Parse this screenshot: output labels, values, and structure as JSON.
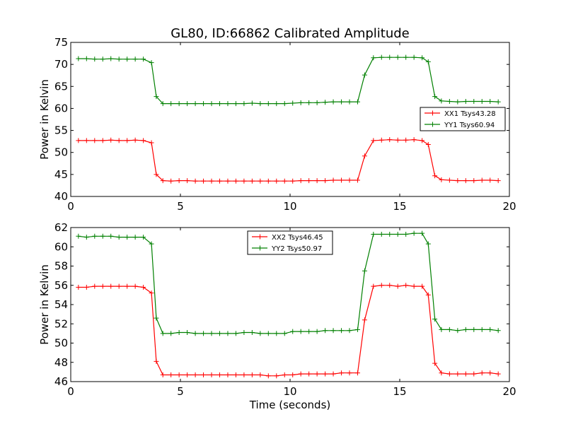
{
  "title": "GL80, ID:66862 Calibrated Amplitude",
  "chart_data": [
    {
      "type": "line",
      "ylabel": "Power in Kelvin",
      "xlabel": "",
      "xlim": [
        0,
        20
      ],
      "ylim": [
        40,
        75
      ],
      "xticks": [
        0,
        5,
        10,
        15,
        20
      ],
      "yticks": [
        40,
        45,
        50,
        55,
        60,
        65,
        70,
        75
      ],
      "legend_position": "center-right",
      "grid": false,
      "series": [
        {
          "name": "XX1 Tsys43.28",
          "color": "#ff0000",
          "x": [
            0.35,
            0.72,
            1.09,
            1.46,
            1.83,
            2.2,
            2.57,
            2.94,
            3.31,
            3.68,
            3.9,
            4.2,
            4.57,
            4.94,
            5.31,
            5.68,
            6.05,
            6.42,
            6.79,
            7.16,
            7.53,
            7.9,
            8.27,
            8.64,
            9.01,
            9.38,
            9.75,
            10.12,
            10.49,
            10.86,
            11.23,
            11.6,
            11.97,
            12.34,
            12.71,
            13.08,
            13.4,
            13.8,
            14.17,
            14.54,
            14.91,
            15.28,
            15.65,
            16.02,
            16.3,
            16.6,
            16.9,
            17.27,
            17.64,
            18.01,
            18.38,
            18.75,
            19.12,
            19.49
          ],
          "y": [
            52.7,
            52.7,
            52.7,
            52.7,
            52.8,
            52.7,
            52.7,
            52.8,
            52.7,
            52.2,
            45.0,
            43.6,
            43.5,
            43.6,
            43.6,
            43.5,
            43.5,
            43.5,
            43.5,
            43.5,
            43.5,
            43.5,
            43.5,
            43.5,
            43.5,
            43.5,
            43.5,
            43.5,
            43.6,
            43.6,
            43.6,
            43.6,
            43.7,
            43.7,
            43.7,
            43.7,
            49.2,
            52.7,
            52.8,
            52.9,
            52.8,
            52.8,
            52.9,
            52.7,
            51.8,
            44.7,
            43.8,
            43.7,
            43.6,
            43.6,
            43.6,
            43.7,
            43.7,
            43.6
          ]
        },
        {
          "name": "YY1 Tsys60.94",
          "color": "#008000",
          "x": [
            0.35,
            0.72,
            1.09,
            1.46,
            1.83,
            2.2,
            2.57,
            2.94,
            3.31,
            3.68,
            3.9,
            4.2,
            4.57,
            4.94,
            5.31,
            5.68,
            6.05,
            6.42,
            6.79,
            7.16,
            7.53,
            7.9,
            8.27,
            8.64,
            9.01,
            9.38,
            9.75,
            10.12,
            10.49,
            10.86,
            11.23,
            11.6,
            11.97,
            12.34,
            12.71,
            13.08,
            13.4,
            13.8,
            14.17,
            14.54,
            14.91,
            15.28,
            15.65,
            16.02,
            16.3,
            16.6,
            16.9,
            17.27,
            17.64,
            18.01,
            18.38,
            18.75,
            19.12,
            19.49
          ],
          "y": [
            71.3,
            71.3,
            71.2,
            71.2,
            71.3,
            71.2,
            71.2,
            71.2,
            71.2,
            70.4,
            62.7,
            61.1,
            61.1,
            61.1,
            61.1,
            61.1,
            61.1,
            61.1,
            61.1,
            61.1,
            61.1,
            61.1,
            61.2,
            61.1,
            61.1,
            61.1,
            61.1,
            61.2,
            61.3,
            61.3,
            61.3,
            61.4,
            61.5,
            61.5,
            61.5,
            61.5,
            67.6,
            71.5,
            71.6,
            71.6,
            71.6,
            71.6,
            71.6,
            71.5,
            70.6,
            62.7,
            61.7,
            61.6,
            61.5,
            61.6,
            61.6,
            61.6,
            61.6,
            61.5
          ]
        }
      ]
    },
    {
      "type": "line",
      "ylabel": "Power in Kelvin",
      "xlabel": "Time (seconds)",
      "xlim": [
        0,
        20
      ],
      "ylim": [
        46,
        62
      ],
      "xticks": [
        0,
        5,
        10,
        15,
        20
      ],
      "yticks": [
        46,
        48,
        50,
        52,
        54,
        56,
        58,
        60,
        62
      ],
      "legend_position": "upper-center",
      "grid": false,
      "series": [
        {
          "name": "XX2 Tsys46.45",
          "color": "#ff0000",
          "x": [
            0.35,
            0.72,
            1.09,
            1.46,
            1.83,
            2.2,
            2.57,
            2.94,
            3.31,
            3.68,
            3.9,
            4.2,
            4.57,
            4.94,
            5.31,
            5.68,
            6.05,
            6.42,
            6.79,
            7.16,
            7.53,
            7.9,
            8.27,
            8.64,
            9.01,
            9.38,
            9.75,
            10.12,
            10.49,
            10.86,
            11.23,
            11.6,
            11.97,
            12.34,
            12.71,
            13.08,
            13.4,
            13.8,
            14.17,
            14.54,
            14.91,
            15.28,
            15.65,
            16.02,
            16.3,
            16.6,
            16.9,
            17.27,
            17.64,
            18.01,
            18.38,
            18.75,
            19.12,
            19.49
          ],
          "y": [
            55.8,
            55.8,
            55.9,
            55.9,
            55.9,
            55.9,
            55.9,
            55.9,
            55.8,
            55.2,
            48.1,
            46.7,
            46.7,
            46.7,
            46.7,
            46.7,
            46.7,
            46.7,
            46.7,
            46.7,
            46.7,
            46.7,
            46.7,
            46.7,
            46.6,
            46.6,
            46.7,
            46.7,
            46.8,
            46.8,
            46.8,
            46.8,
            46.8,
            46.9,
            46.9,
            46.9,
            52.4,
            55.9,
            56.0,
            56.0,
            55.9,
            56.0,
            55.9,
            55.9,
            55.0,
            47.9,
            46.9,
            46.8,
            46.8,
            46.8,
            46.8,
            46.9,
            46.9,
            46.8
          ]
        },
        {
          "name": "YY2 Tsys50.97",
          "color": "#008000",
          "x": [
            0.35,
            0.72,
            1.09,
            1.46,
            1.83,
            2.2,
            2.57,
            2.94,
            3.31,
            3.68,
            3.9,
            4.2,
            4.57,
            4.94,
            5.31,
            5.68,
            6.05,
            6.42,
            6.79,
            7.16,
            7.53,
            7.9,
            8.27,
            8.64,
            9.01,
            9.38,
            9.75,
            10.12,
            10.49,
            10.86,
            11.23,
            11.6,
            11.97,
            12.34,
            12.71,
            13.08,
            13.4,
            13.8,
            14.17,
            14.54,
            14.91,
            15.28,
            15.65,
            16.02,
            16.3,
            16.6,
            16.9,
            17.27,
            17.64,
            18.01,
            18.38,
            18.75,
            19.12,
            19.49
          ],
          "y": [
            61.1,
            61.0,
            61.1,
            61.1,
            61.1,
            61.0,
            61.0,
            61.0,
            61.0,
            60.3,
            52.6,
            51.0,
            51.0,
            51.1,
            51.1,
            51.0,
            51.0,
            51.0,
            51.0,
            51.0,
            51.0,
            51.1,
            51.1,
            51.0,
            51.0,
            51.0,
            51.0,
            51.2,
            51.2,
            51.2,
            51.2,
            51.3,
            51.3,
            51.3,
            51.3,
            51.4,
            57.5,
            61.3,
            61.3,
            61.3,
            61.3,
            61.3,
            61.4,
            61.4,
            60.3,
            52.5,
            51.4,
            51.4,
            51.3,
            51.4,
            51.4,
            51.4,
            51.4,
            51.3
          ]
        }
      ]
    }
  ]
}
